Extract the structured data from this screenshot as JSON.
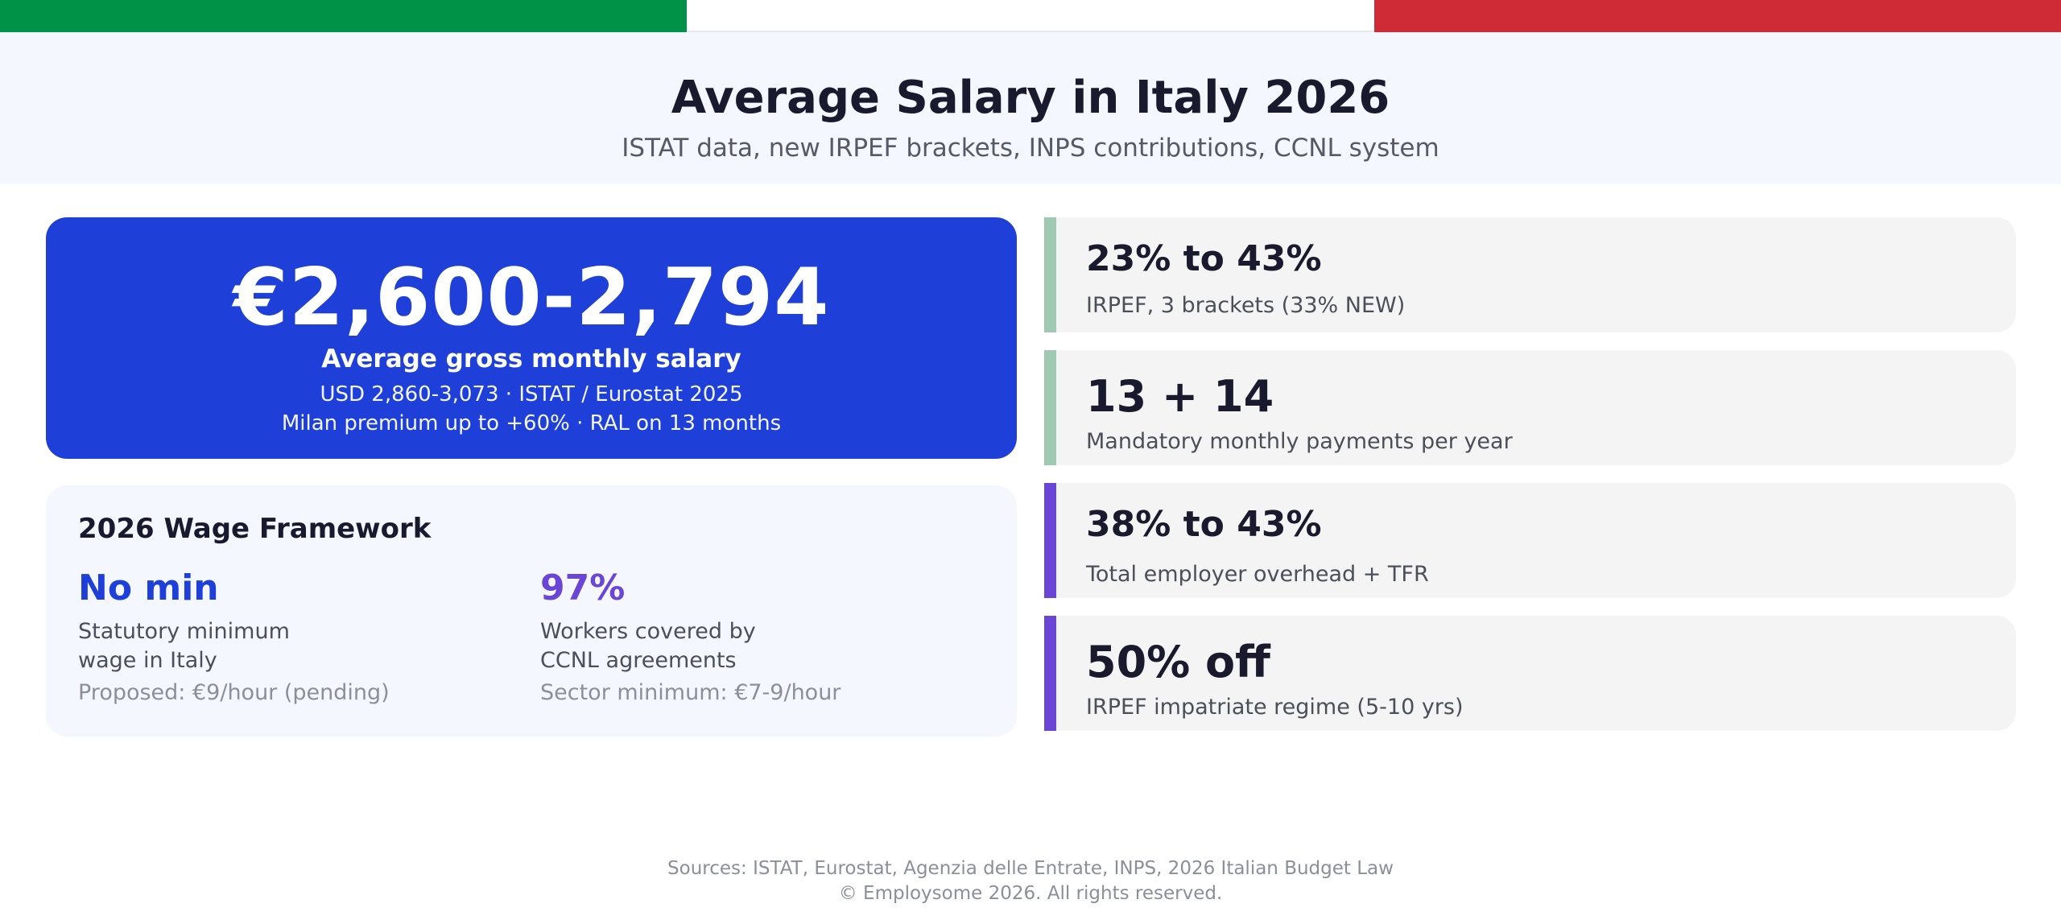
{
  "colors": {
    "flag_green": "#009246",
    "flag_white": "#ffffff",
    "flag_red": "#ce2b37",
    "hero_blue": "#1e40d8",
    "accent_purple": "#6b46d6",
    "accent_sage": "#9fc9b0"
  },
  "header": {
    "title": "Average Salary in Italy 2026",
    "subtitle": "ISTAT data, new IRPEF brackets, INPS contributions, CCNL system"
  },
  "hero": {
    "value": "€2,600-2,794",
    "label": "Average gross monthly salary",
    "sub1": "USD 2,860-3,073  ·  ISTAT / Eurostat 2025",
    "sub2": "Milan premium up to +60%  ·  RAL on 13 months"
  },
  "framework": {
    "title": "2026 Wage Framework",
    "left": {
      "value": "No min",
      "desc": "Statutory minimum\nwage in Italy",
      "note": "Proposed: €9/hour (pending)"
    },
    "right": {
      "value": "97%",
      "desc": "Workers covered by\nCCNL agreements",
      "note": "Sector minimum: €7-9/hour"
    }
  },
  "stats": [
    {
      "value": "23% to 43%",
      "desc": "IRPEF, 3 brackets (33% NEW)",
      "accent": "#9fc9b0"
    },
    {
      "value": "13 + 14",
      "desc": "Mandatory monthly payments per year",
      "accent": "#9fc9b0"
    },
    {
      "value": "38% to 43%",
      "desc": "Total employer overhead + TFR",
      "accent": "#6b46d6"
    },
    {
      "value": "50% off",
      "desc": "IRPEF impatriate regime (5-10 yrs)",
      "accent": "#6b46d6"
    }
  ],
  "footer": {
    "sources": "Sources: ISTAT, Eurostat, Agenzia delle Entrate, INPS, 2026 Italian Budget Law",
    "copyright": "© Employsome 2026. All rights reserved."
  }
}
